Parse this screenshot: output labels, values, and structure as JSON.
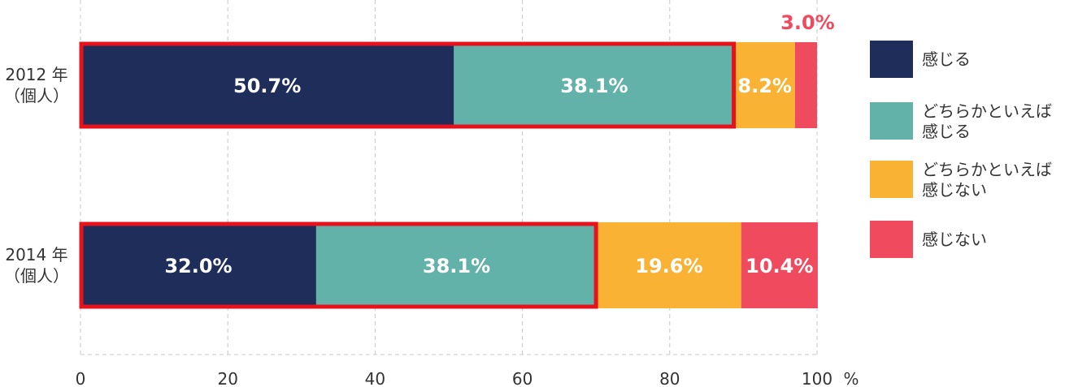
{
  "chart_data": {
    "type": "bar",
    "orientation": "horizontal",
    "stacked": true,
    "categories": [
      "2012年（個人）",
      "2014年（個人）"
    ],
    "category_label_lines": [
      [
        "2012 年",
        "（個人）"
      ],
      [
        "2014 年",
        "（個人）"
      ]
    ],
    "series": [
      {
        "name": "感じる",
        "name_lines": [
          "感じる"
        ],
        "values": [
          50.7,
          32.0
        ],
        "labels": [
          "50.7%",
          "32.0%"
        ],
        "color": "#1e2d5a"
      },
      {
        "name": "どちらかといえば感じる",
        "name_lines": [
          "どちらかといえば",
          "感じる"
        ],
        "values": [
          38.1,
          38.1
        ],
        "labels": [
          "38.1%",
          "38.1%"
        ],
        "color": "#62b2aa"
      },
      {
        "name": "どちらかといえば感じない",
        "name_lines": [
          "どちらかといえば",
          "感じない"
        ],
        "values": [
          8.2,
          19.6
        ],
        "labels": [
          "8.2%",
          "19.6%"
        ],
        "color": "#f9b233"
      },
      {
        "name": "感じない",
        "name_lines": [
          "感じない"
        ],
        "values": [
          3.0,
          10.4
        ],
        "labels": [
          "3.0%",
          "10.4%"
        ],
        "color": "#ef4a5e"
      }
    ],
    "outside_labels": [
      {
        "row": 0,
        "series": 3,
        "text": "3.0%"
      }
    ],
    "highlight": {
      "color": "#e8121c",
      "series_span": [
        0,
        1
      ]
    },
    "xlim": [
      0,
      100
    ],
    "xticks": [
      "0",
      "20",
      "40",
      "60",
      "80",
      "100"
    ],
    "xunit": "%",
    "grid": "dashed vertical",
    "legend": "right"
  }
}
